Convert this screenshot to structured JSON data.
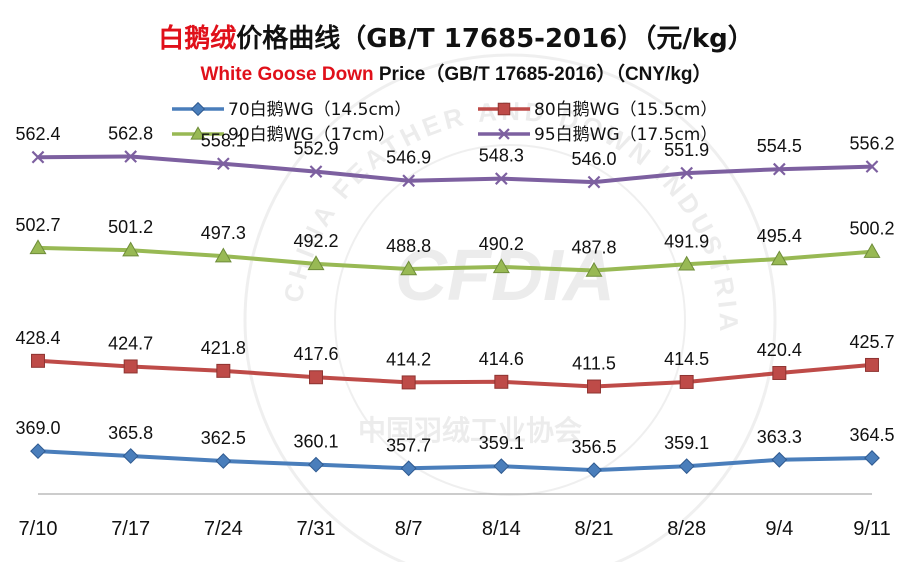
{
  "title": {
    "cn_highlight": "白鹅绒",
    "cn_rest": "价格曲线（GB/T 17685-2016）（元/kg）",
    "en_highlight": "White Goose Down",
    "en_rest": " Price（GB/T 17685-2016）（CNY/kg）"
  },
  "colors": {
    "highlight": "#e0101a",
    "text": "#111111",
    "axis": "#999999"
  },
  "watermark": {
    "arc_text": "CHINA FEATHER AND DOWN INDUSTRIAL ASSOCIATION",
    "center_text": "CFDIA",
    "bottom_text": "中国羽绒工业协会"
  },
  "chart_data": {
    "type": "line",
    "categories": [
      "7/10",
      "7/17",
      "7/24",
      "7/31",
      "8/7",
      "8/14",
      "8/21",
      "8/28",
      "9/4",
      "9/11"
    ],
    "ylim": [
      300,
      600
    ],
    "grid": false,
    "legend_position": "top",
    "series": [
      {
        "name": "70白鹅WG（14.5cm）",
        "color": "#4a7ebb",
        "marker": "diamond",
        "values": [
          369.0,
          365.8,
          362.5,
          360.1,
          357.7,
          359.1,
          356.5,
          359.1,
          363.3,
          364.5
        ],
        "labels": [
          "369.0",
          "365.8",
          "362.5",
          "360.1",
          "357.7",
          "359.1",
          "356.5",
          "359.1",
          "363.3",
          "364.5"
        ]
      },
      {
        "name": "80白鹅WG（15.5cm）",
        "color": "#be4b48",
        "marker": "square",
        "values": [
          428.4,
          424.7,
          421.8,
          417.6,
          414.2,
          414.6,
          411.5,
          414.5,
          420.4,
          425.7
        ],
        "labels": [
          "428.4",
          "424.7",
          "421.8",
          "417.6",
          "414.2",
          "414.6",
          "411.5",
          "414.5",
          "420.4",
          "425.7"
        ]
      },
      {
        "name": "90白鹅WG（17cm）",
        "color": "#98b954",
        "marker": "triangle",
        "values": [
          502.7,
          501.2,
          497.3,
          492.2,
          488.8,
          490.2,
          487.8,
          491.9,
          495.4,
          500.2
        ],
        "labels": [
          "502.7",
          "501.2",
          "497.3",
          "492.2",
          "488.8",
          "490.2",
          "487.8",
          "491.9",
          "495.4",
          "500.2"
        ]
      },
      {
        "name": "95白鹅WG（17.5cm）",
        "color": "#7d60a0",
        "marker": "x",
        "values": [
          562.4,
          562.8,
          558.1,
          552.9,
          546.9,
          548.3,
          546.0,
          551.9,
          554.5,
          556.2
        ],
        "labels": [
          "562.4",
          "562.8",
          "558.1",
          "552.9",
          "546.9",
          "548.3",
          "546.0",
          "551.9",
          "554.5",
          "556.2"
        ]
      }
    ]
  }
}
